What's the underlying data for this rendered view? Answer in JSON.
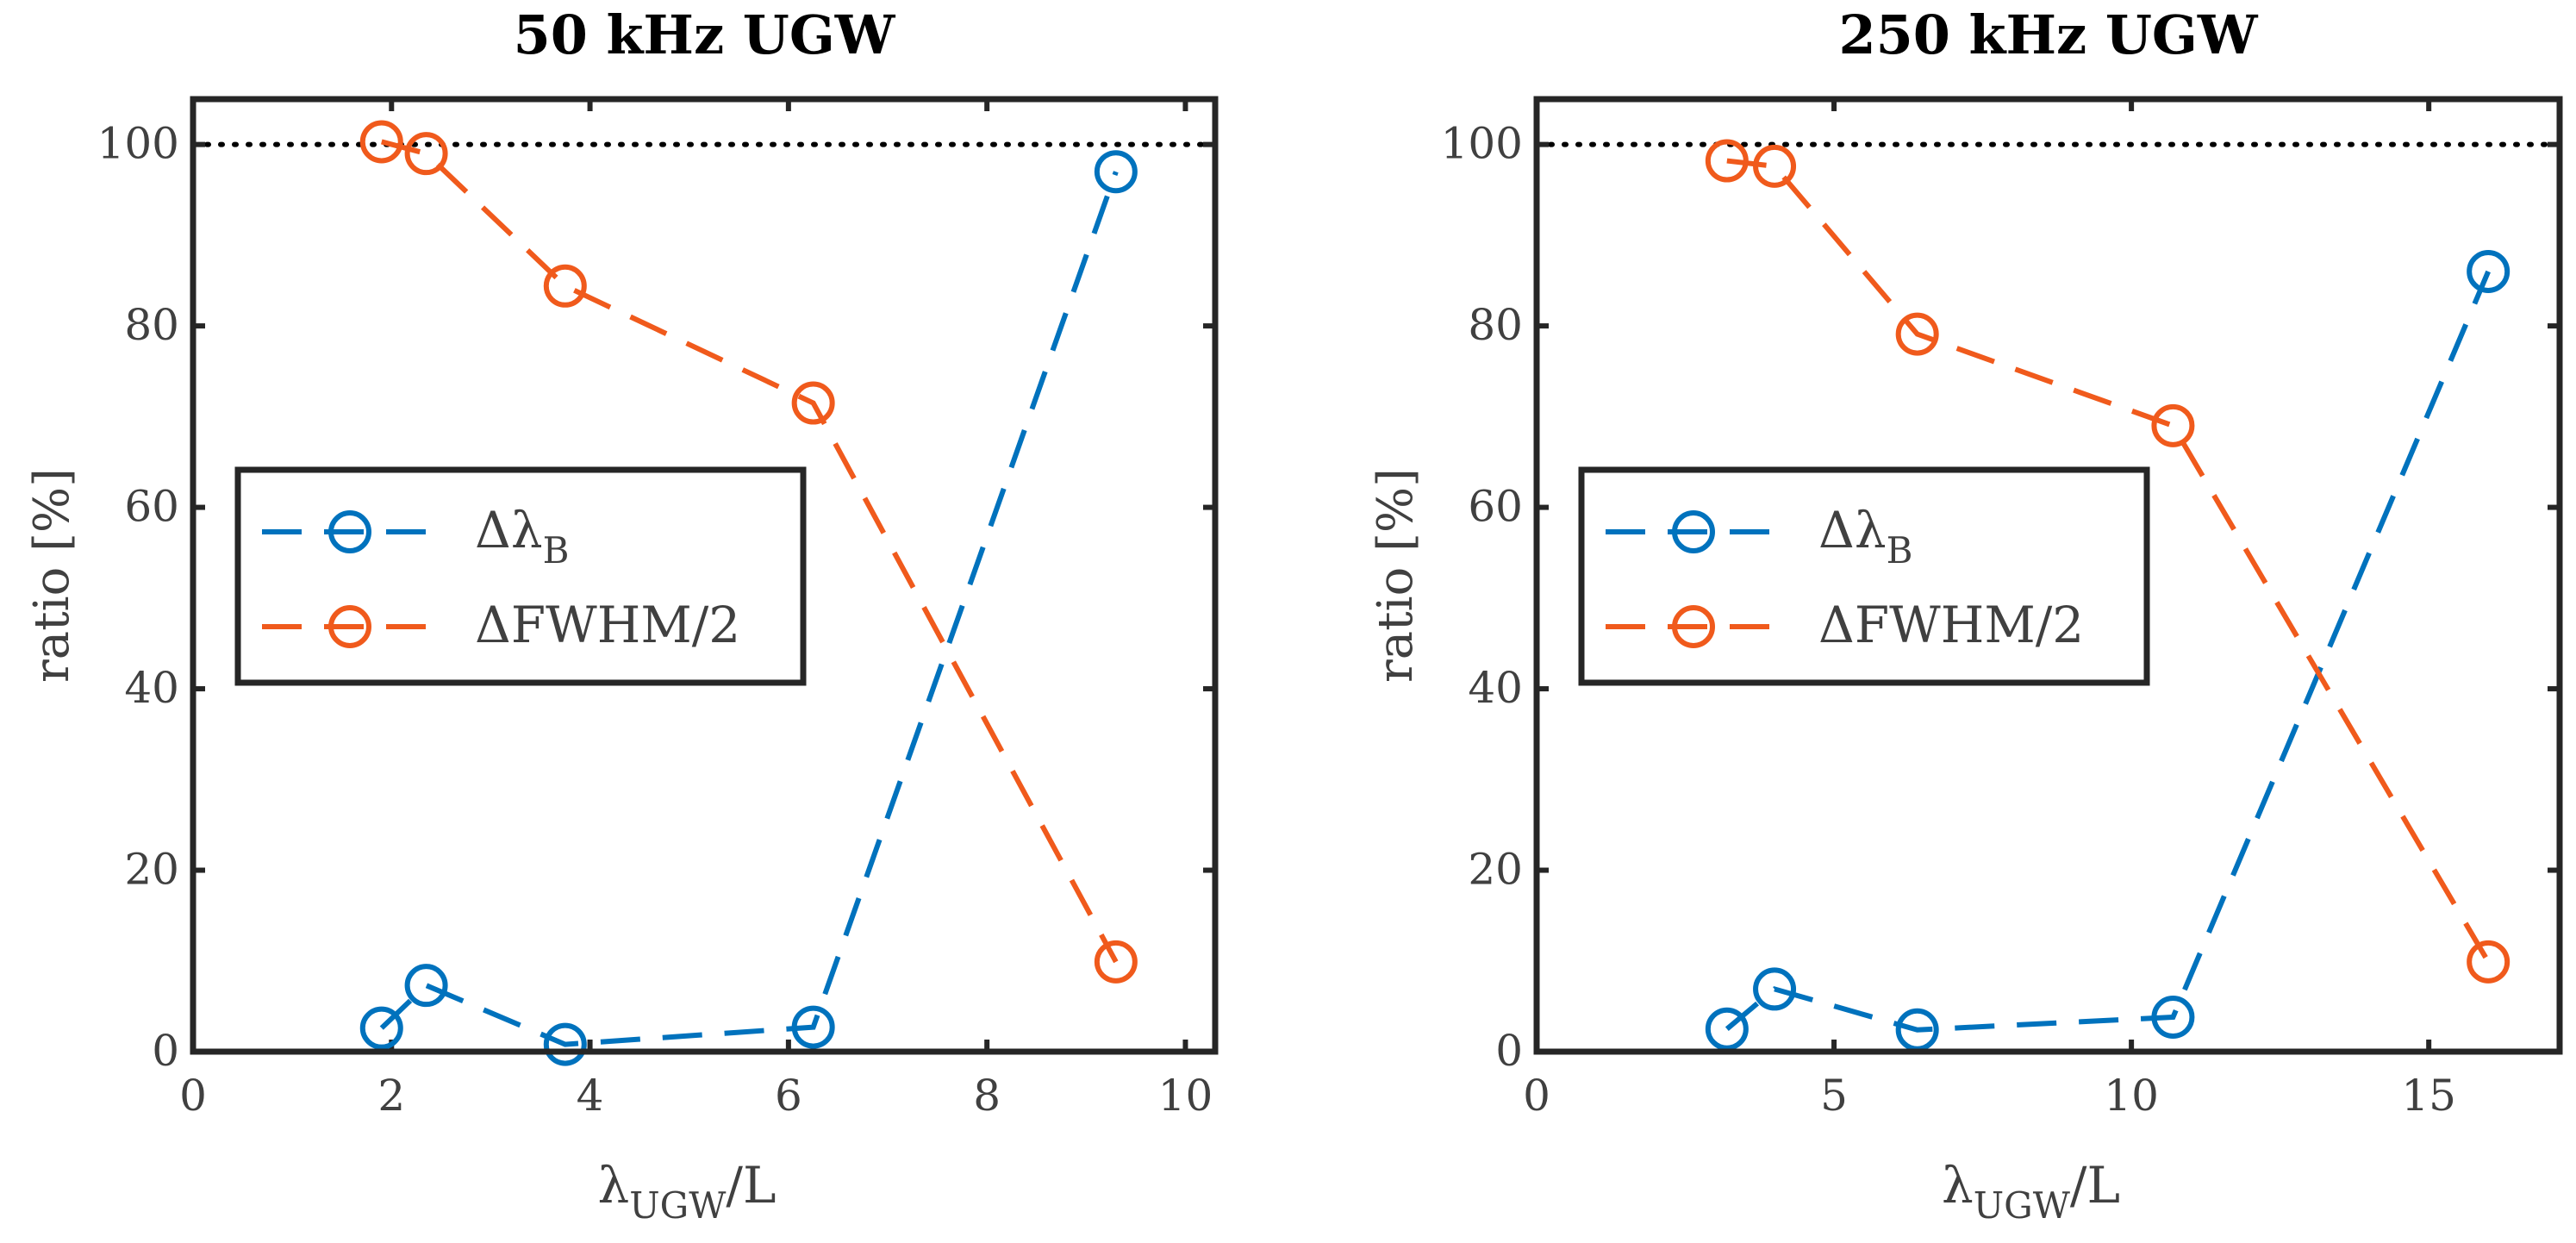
{
  "colors": {
    "delta_lambda": "#0072BD",
    "delta_fwhm": "#F05A1C",
    "axis": "#262626",
    "tick_text": "#404040",
    "reference": "#000000"
  },
  "chart_data": [
    {
      "type": "line",
      "title": "50 kHz UGW",
      "xlabel": {
        "main": "λ",
        "sub": "UGW",
        "tail": "/L"
      },
      "ylabel": "ratio [%]",
      "xlim": [
        0,
        10.3
      ],
      "ylim": [
        0,
        105
      ],
      "xticks": [
        0,
        2,
        4,
        6,
        8,
        10
      ],
      "xtick_labels": [
        "0",
        "2",
        "4",
        "6",
        "8",
        "10"
      ],
      "yticks": [
        0,
        20,
        40,
        60,
        80,
        100
      ],
      "ytick_labels": [
        "0",
        "20",
        "40",
        "60",
        "80",
        "100"
      ],
      "reference_line": {
        "y": 100,
        "style": "dotted"
      },
      "legend": "center-left",
      "series": [
        {
          "name": "Δλ_B",
          "label": {
            "main": "Δλ",
            "sub": "B"
          },
          "color_key": "delta_lambda",
          "line_style": "dashed",
          "marker": "circle",
          "x": [
            1.9,
            2.35,
            3.75,
            6.25,
            9.3
          ],
          "y": [
            2.6,
            7.3,
            0.8,
            2.7,
            97.0
          ]
        },
        {
          "name": "ΔFWHM/2",
          "label": {
            "main": "ΔFWHM/2",
            "sub": ""
          },
          "color_key": "delta_fwhm",
          "line_style": "dashed",
          "marker": "circle",
          "x": [
            1.9,
            2.35,
            3.75,
            6.25,
            9.3
          ],
          "y": [
            100.3,
            99.0,
            84.4,
            71.5,
            9.9
          ]
        }
      ]
    },
    {
      "type": "line",
      "title": "250 kHz UGW",
      "xlabel": {
        "main": "λ",
        "sub": "UGW",
        "tail": "/L"
      },
      "ylabel": "ratio [%]",
      "xlim": [
        0,
        17.2
      ],
      "ylim": [
        0,
        105
      ],
      "xticks": [
        0,
        5,
        10,
        15
      ],
      "xtick_labels": [
        "0",
        "5",
        "10",
        "15"
      ],
      "yticks": [
        0,
        20,
        40,
        60,
        80,
        100
      ],
      "ytick_labels": [
        "0",
        "20",
        "40",
        "60",
        "80",
        "100"
      ],
      "reference_line": {
        "y": 100,
        "style": "dotted"
      },
      "legend": "center-left",
      "series": [
        {
          "name": "Δλ_B",
          "label": {
            "main": "Δλ",
            "sub": "B"
          },
          "color_key": "delta_lambda",
          "line_style": "dashed",
          "marker": "circle",
          "x": [
            3.2,
            4.0,
            6.4,
            10.7,
            16.0
          ],
          "y": [
            2.5,
            6.9,
            2.4,
            3.8,
            86.0
          ]
        },
        {
          "name": "ΔFWHM/2",
          "label": {
            "main": "ΔFWHM/2",
            "sub": ""
          },
          "color_key": "delta_fwhm",
          "line_style": "dashed",
          "marker": "circle",
          "x": [
            3.2,
            4.0,
            6.4,
            10.7,
            16.0
          ],
          "y": [
            98.2,
            97.6,
            79.1,
            69.0,
            9.9
          ]
        }
      ]
    }
  ]
}
